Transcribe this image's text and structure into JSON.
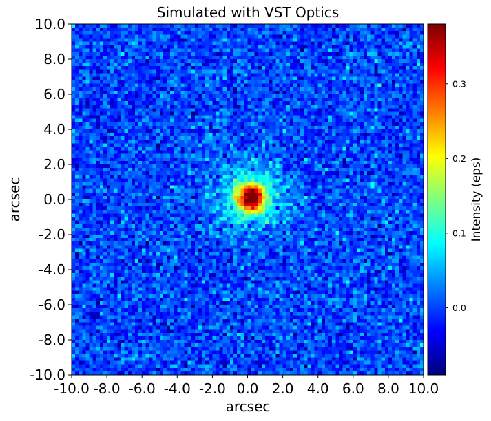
{
  "chart_data": {
    "type": "heatmap",
    "title": "Simulated with VST Optics",
    "xlabel": "arcsec",
    "ylabel": "arcsec",
    "xlim": [
      -10,
      10
    ],
    "ylim": [
      -10,
      10
    ],
    "x_ticks": [
      -10,
      -8,
      -6,
      -4,
      -2,
      0,
      2,
      4,
      6,
      8,
      10
    ],
    "x_tick_labels": [
      "-10.0",
      "-8.0",
      "-6.0",
      "-4.0",
      "-2.0",
      "0.0",
      "2.0",
      "4.0",
      "6.0",
      "8.0",
      "10.0"
    ],
    "y_ticks": [
      -10,
      -8,
      -6,
      -4,
      -2,
      0,
      2,
      4,
      6,
      8,
      10
    ],
    "y_tick_labels": [
      "-10.0",
      "-8.0",
      "-6.0",
      "-4.0",
      "-2.0",
      "0.0",
      "2.0",
      "4.0",
      "6.0",
      "8.0",
      "10.0"
    ],
    "grid": false,
    "colormap": "jet",
    "colorbar": {
      "label": "Intensity (eps)",
      "vmin": -0.09,
      "vmax": 0.38,
      "ticks": [
        0.0,
        0.1,
        0.2,
        0.3
      ],
      "tick_labels": [
        "0.0",
        "0.1",
        "0.2",
        "0.3"
      ]
    },
    "pixels_per_axis": 100,
    "source": {
      "center": [
        0.2,
        0.1
      ],
      "peak": 0.36,
      "core_sigma": 0.5,
      "halo_amplitude": 0.11,
      "halo_sigma": 1.35,
      "background": 0.0,
      "noise_sigma": 0.03
    }
  }
}
